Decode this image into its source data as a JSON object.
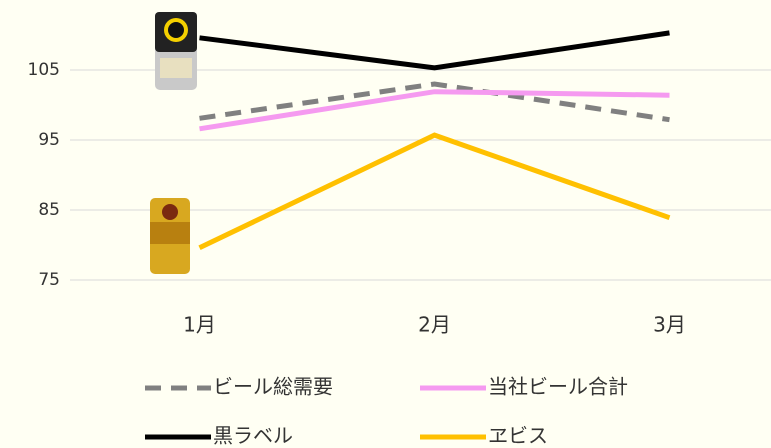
{
  "chart_data": {
    "type": "line",
    "categories": [
      "1月",
      "2月",
      "3月"
    ],
    "series": [
      {
        "name": "ビール総需要",
        "color": "#808080",
        "dash": true,
        "values": [
          98.1,
          103.0,
          97.9
        ]
      },
      {
        "name": "当社ビール合計",
        "color": "#f59af0",
        "dash": false,
        "values": [
          96.6,
          101.9,
          101.4
        ]
      },
      {
        "name": "黒ラベル",
        "color": "#000000",
        "dash": false,
        "values": [
          109.6,
          105.3,
          110.3
        ]
      },
      {
        "name": "ヱビス",
        "color": "#ffc000",
        "dash": false,
        "values": [
          79.6,
          95.7,
          83.9
        ]
      }
    ],
    "ylim": [
      75,
      115
    ],
    "yticks": [
      75,
      85,
      95,
      105
    ],
    "grid": true
  }
}
